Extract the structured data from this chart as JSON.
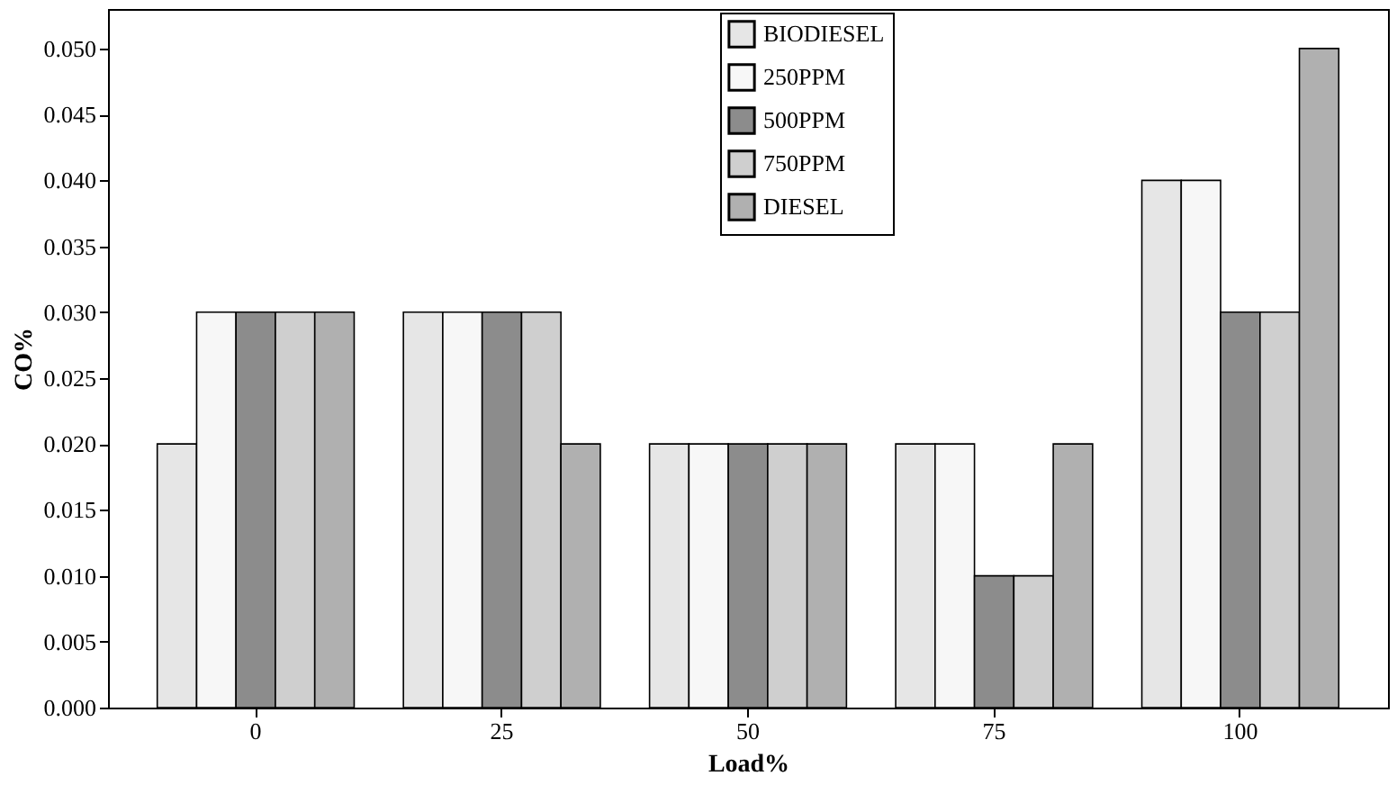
{
  "chart_data": {
    "type": "bar",
    "xlabel": "Load%",
    "ylabel": "CO%",
    "categories": [
      "0",
      "25",
      "50",
      "75",
      "100"
    ],
    "series": [
      {
        "name": "BIODIESEL",
        "color": "#e6e6e6",
        "values": [
          0.02,
          0.03,
          0.02,
          0.02,
          0.04
        ]
      },
      {
        "name": "250PPM",
        "color": "#f7f7f7",
        "values": [
          0.03,
          0.03,
          0.02,
          0.02,
          0.04
        ]
      },
      {
        "name": "500PPM",
        "color": "#8c8c8c",
        "values": [
          0.03,
          0.03,
          0.02,
          0.01,
          0.03
        ]
      },
      {
        "name": "750PPM",
        "color": "#cfcfcf",
        "values": [
          0.03,
          0.03,
          0.02,
          0.01,
          0.03
        ]
      },
      {
        "name": "DIESEL",
        "color": "#b0b0b0",
        "values": [
          0.03,
          0.02,
          0.02,
          0.02,
          0.05
        ]
      }
    ],
    "ylim": [
      0,
      0.053
    ],
    "yticks": [
      {
        "value": 0,
        "label": "0.000"
      },
      0.005,
      {
        "value": 0.01,
        "label": "0.010"
      },
      0.015,
      {
        "value": 0.02,
        "label": "0.020"
      },
      0.025,
      {
        "value": 0.03,
        "label": "0.030"
      },
      0.035,
      {
        "value": 0.04,
        "label": "0.040"
      },
      0.045,
      {
        "value": 0.05,
        "label": "0.050"
      }
    ],
    "legend": "top right",
    "grid": false
  }
}
